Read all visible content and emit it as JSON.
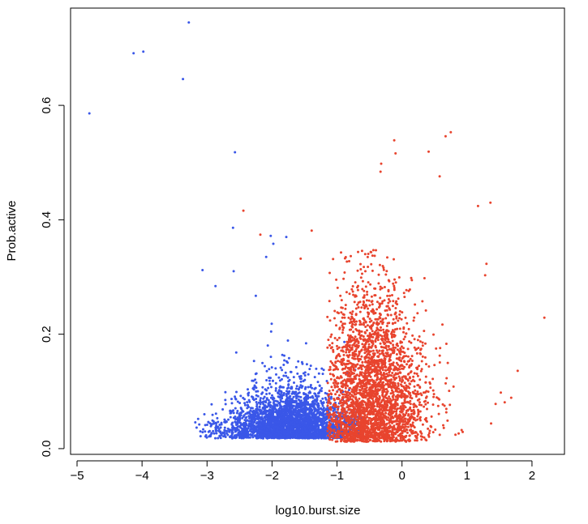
{
  "chart_data": {
    "type": "scatter",
    "title": "",
    "xlabel": "log10.burst.size",
    "ylabel": "Prob.active",
    "xlim": [
      -5.1,
      2.5
    ],
    "ylim": [
      -0.01,
      0.77
    ],
    "x_ticks": [
      -5,
      -4,
      -3,
      -2,
      -1,
      0,
      1,
      2
    ],
    "x_tick_labels": [
      "−5",
      "−4",
      "−3",
      "−2",
      "−1",
      "0",
      "1",
      "2"
    ],
    "y_ticks": [
      0.0,
      0.2,
      0.4,
      0.6
    ],
    "y_tick_labels": [
      "0.0",
      "0.2",
      "0.4",
      "0.6"
    ],
    "grid": false,
    "legend": "none",
    "colors": {
      "blue": "#3a57e8",
      "red": "#e8442e"
    },
    "outlier_points": {
      "blue": [
        [
          -3.28,
          0.745
        ],
        [
          -4.13,
          0.691
        ],
        [
          -3.98,
          0.694
        ],
        [
          -3.37,
          0.646
        ],
        [
          -4.81,
          0.586
        ],
        [
          -2.57,
          0.518
        ],
        [
          -2.6,
          0.386
        ],
        [
          -2.59,
          0.31
        ],
        [
          -3.07,
          0.312
        ],
        [
          -2.87,
          0.284
        ],
        [
          -2.02,
          0.372
        ],
        [
          -1.98,
          0.358
        ],
        [
          -2.09,
          0.335
        ],
        [
          -2.25,
          0.267
        ],
        [
          -2.55,
          0.168
        ],
        [
          -1.78,
          0.37
        ]
      ],
      "red": [
        [
          0.75,
          0.553
        ],
        [
          0.67,
          0.546
        ],
        [
          -0.12,
          0.539
        ],
        [
          -0.1,
          0.516
        ],
        [
          0.41,
          0.519
        ],
        [
          0.58,
          0.476
        ],
        [
          -0.32,
          0.498
        ],
        [
          -0.33,
          0.484
        ],
        [
          1.36,
          0.43
        ],
        [
          1.17,
          0.424
        ],
        [
          2.19,
          0.229
        ],
        [
          1.78,
          0.136
        ],
        [
          1.68,
          0.089
        ],
        [
          1.52,
          0.098
        ],
        [
          1.44,
          0.078
        ],
        [
          1.58,
          0.081
        ],
        [
          1.37,
          0.044
        ],
        [
          1.3,
          0.323
        ],
        [
          1.28,
          0.303
        ],
        [
          -2.44,
          0.416
        ],
        [
          -2.18,
          0.374
        ],
        [
          -1.39,
          0.381
        ],
        [
          -1.56,
          0.332
        ]
      ]
    },
    "clusters": {
      "blue": {
        "n_points": 3200,
        "x_range": [
          -3.2,
          -0.6
        ],
        "x_center": -1.7,
        "y_floor": 0.018,
        "y_typical": 0.04,
        "y_max": 0.23
      },
      "red": {
        "n_points": 3000,
        "x_range": [
          -1.15,
          1.0
        ],
        "x_center": -0.45,
        "y_floor": 0.012,
        "y_typical": 0.09,
        "y_max": 0.35
      }
    }
  }
}
